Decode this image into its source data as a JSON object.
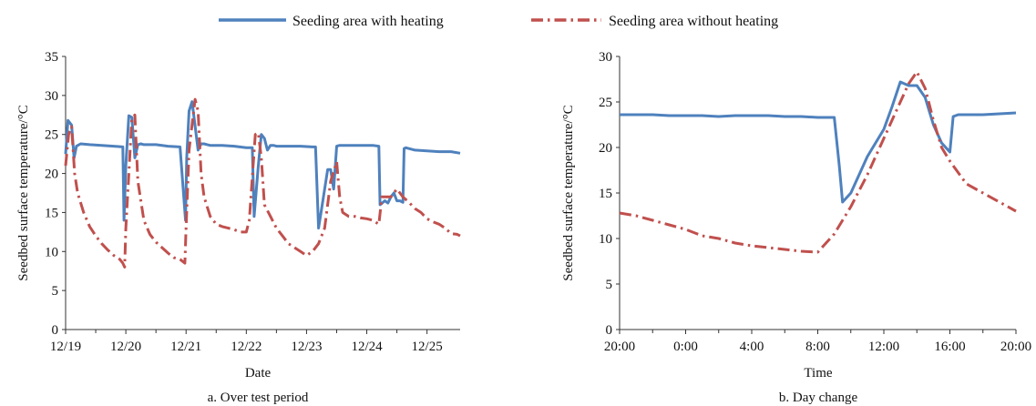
{
  "colors": {
    "heated": "#4f81bd",
    "unheated": "#c0504d",
    "axis": "#333333"
  },
  "legend": [
    {
      "label": "Seeding area with heating",
      "style": "solid",
      "color": "#4f81bd"
    },
    {
      "label": "Seeding area without heating",
      "style": "dash-dot",
      "color": "#c0504d"
    }
  ],
  "chart_data": [
    {
      "type": "line",
      "caption": "a. Over test period",
      "xlabel": "Date",
      "ylabel": "Seedbed surface temperature/°C",
      "ylim": [
        0,
        35
      ],
      "yticks": [
        0,
        5,
        10,
        15,
        20,
        25,
        30,
        35
      ],
      "xlim": [
        0,
        6.55
      ],
      "xtick_labels": [
        "12/19",
        "12/20",
        "12/21",
        "12/22",
        "12/23",
        "12/24",
        "12/25"
      ],
      "xtick_positions": [
        0,
        1,
        2,
        3,
        4,
        5,
        6
      ],
      "x_unit": "days since 12/19",
      "grid": false,
      "series": [
        {
          "name": "Seeding area with heating",
          "color": "#4f81bd",
          "style": "solid",
          "x": [
            0,
            0.04,
            0.1,
            0.14,
            0.18,
            0.25,
            0.4,
            0.6,
            0.8,
            0.95,
            0.97,
            1.0,
            1.05,
            1.1,
            1.15,
            1.2,
            1.25,
            1.3,
            1.5,
            1.7,
            1.9,
            1.99,
            2.01,
            2.05,
            2.1,
            2.2,
            2.25,
            2.3,
            2.35,
            2.4,
            2.6,
            2.8,
            3.0,
            3.1,
            3.13,
            3.2,
            3.25,
            3.3,
            3.35,
            3.4,
            3.45,
            3.5,
            3.7,
            3.9,
            4.1,
            4.15,
            4.2,
            4.25,
            4.3,
            4.35,
            4.4,
            4.45,
            4.5,
            4.55,
            4.6,
            4.7,
            4.9,
            5.1,
            5.2,
            5.22,
            5.3,
            5.35,
            5.4,
            5.45,
            5.5,
            5.55,
            5.6,
            5.62,
            5.65,
            5.8,
            6.0,
            6.2,
            6.4,
            6.55
          ],
          "y": [
            22.5,
            26.8,
            26.2,
            22.0,
            23.5,
            23.8,
            23.7,
            23.6,
            23.5,
            23.4,
            14.0,
            21.0,
            27.4,
            27.2,
            22.0,
            23.7,
            23.8,
            23.7,
            23.7,
            23.5,
            23.4,
            14.0,
            22.0,
            28.0,
            29.2,
            23.0,
            23.8,
            23.8,
            23.7,
            23.6,
            23.6,
            23.5,
            23.3,
            23.3,
            14.5,
            21.0,
            25.0,
            24.5,
            23.0,
            23.6,
            23.6,
            23.5,
            23.5,
            23.5,
            23.4,
            23.4,
            13.0,
            15.5,
            18.0,
            20.5,
            20.5,
            18.0,
            23.5,
            23.6,
            23.6,
            23.6,
            23.6,
            23.6,
            23.5,
            16.0,
            16.5,
            16.2,
            17.0,
            17.5,
            16.5,
            16.5,
            16.3,
            23.2,
            23.3,
            23.0,
            22.9,
            22.8,
            22.8,
            22.6
          ]
        },
        {
          "name": "Seeding area without heating",
          "color": "#c0504d",
          "style": "dash-dot",
          "x": [
            0,
            0.05,
            0.1,
            0.15,
            0.2,
            0.3,
            0.4,
            0.5,
            0.6,
            0.7,
            0.8,
            0.9,
            0.95,
            0.98,
            1.0,
            1.05,
            1.1,
            1.15,
            1.2,
            1.3,
            1.4,
            1.5,
            1.6,
            1.7,
            1.8,
            1.9,
            1.98,
            2.0,
            2.05,
            2.15,
            2.2,
            2.25,
            2.3,
            2.4,
            2.5,
            2.6,
            2.7,
            2.8,
            2.9,
            3.0,
            3.05,
            3.15,
            3.2,
            3.25,
            3.3,
            3.4,
            3.5,
            3.6,
            3.7,
            3.8,
            3.9,
            4.0,
            4.1,
            4.2,
            4.3,
            4.4,
            4.5,
            4.55,
            4.6,
            4.7,
            4.8,
            4.9,
            5.0,
            5.1,
            5.2,
            5.25,
            5.3,
            5.4,
            5.5,
            5.6,
            5.7,
            5.8,
            5.9,
            6.0,
            6.1,
            6.2,
            6.3,
            6.4,
            6.5,
            6.55
          ],
          "y": [
            21.0,
            25.0,
            26.0,
            20.0,
            17.5,
            15.0,
            13.2,
            12.0,
            11.0,
            10.2,
            9.5,
            9.0,
            8.5,
            8.0,
            13.0,
            20.0,
            27.0,
            27.5,
            19.0,
            14.0,
            12.2,
            11.2,
            10.5,
            9.8,
            9.2,
            9.0,
            8.5,
            13.0,
            23.0,
            29.5,
            28.0,
            20.0,
            17.0,
            14.5,
            13.5,
            13.2,
            13.0,
            12.8,
            12.5,
            12.5,
            14.0,
            25.0,
            25.2,
            22.0,
            16.0,
            14.5,
            13.0,
            12.0,
            11.0,
            10.5,
            10.0,
            9.5,
            10.0,
            11.0,
            13.0,
            19.0,
            21.5,
            17.0,
            15.0,
            14.5,
            14.5,
            14.3,
            14.2,
            14.0,
            13.5,
            17.0,
            17.0,
            17.0,
            18.0,
            17.0,
            16.3,
            15.5,
            15.0,
            14.2,
            13.8,
            13.5,
            13.0,
            12.3,
            12.2,
            12.0
          ]
        }
      ]
    },
    {
      "type": "line",
      "caption": "b. Day change",
      "xlabel": "Time",
      "ylabel": "Seedbed surface temperature/°C",
      "ylim": [
        0,
        30
      ],
      "yticks": [
        0,
        5,
        10,
        15,
        20,
        25,
        30
      ],
      "xlim": [
        0,
        24
      ],
      "xtick_labels": [
        "20:00",
        "0:00",
        "4:00",
        "8:00",
        "12:00",
        "16:00",
        "20:00"
      ],
      "xtick_positions": [
        0,
        4,
        8,
        12,
        16,
        20,
        24
      ],
      "x_unit": "hours since 20:00",
      "grid": false,
      "series": [
        {
          "name": "Seeding area with heating",
          "color": "#4f81bd",
          "style": "solid",
          "x": [
            0,
            1,
            2,
            3,
            4,
            5,
            6,
            7,
            8,
            9,
            10,
            11,
            12,
            13,
            13.3,
            13.5,
            14,
            15,
            16,
            16.5,
            17,
            17.5,
            18,
            18.5,
            19,
            19.5,
            20,
            20.2,
            20.5,
            21,
            22,
            23,
            24
          ],
          "y": [
            23.6,
            23.6,
            23.6,
            23.5,
            23.5,
            23.5,
            23.4,
            23.5,
            23.5,
            23.5,
            23.4,
            23.4,
            23.3,
            23.3,
            18.0,
            14.0,
            15.0,
            19.0,
            22.0,
            24.5,
            27.2,
            26.8,
            26.8,
            25.5,
            22.5,
            20.5,
            19.5,
            23.4,
            23.6,
            23.6,
            23.6,
            23.7,
            23.8
          ]
        },
        {
          "name": "Seeding area without heating",
          "color": "#c0504d",
          "style": "dash-dot",
          "x": [
            0,
            1,
            2,
            3,
            4,
            5,
            6,
            7,
            8,
            9,
            10,
            11,
            12,
            13,
            13.5,
            14,
            15,
            16,
            17,
            17.5,
            18,
            18.5,
            19,
            19.5,
            20,
            21,
            22,
            23,
            24
          ],
          "y": [
            12.8,
            12.5,
            12.0,
            11.5,
            11.0,
            10.3,
            10.0,
            9.5,
            9.2,
            9.0,
            8.8,
            8.6,
            8.5,
            10.5,
            12.0,
            13.5,
            17.0,
            21.0,
            25.0,
            27.0,
            28.3,
            26.5,
            23.0,
            20.0,
            18.5,
            16.0,
            15.0,
            14.0,
            13.0
          ]
        }
      ]
    }
  ]
}
